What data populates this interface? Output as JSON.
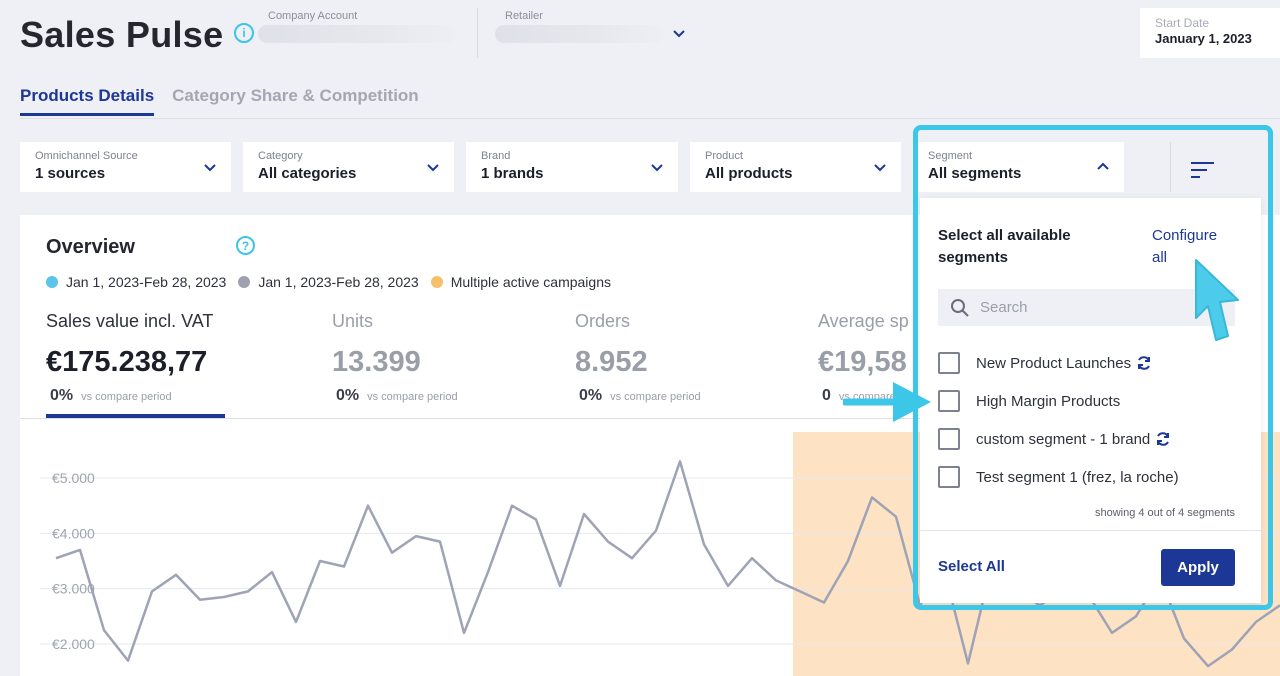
{
  "header": {
    "title": "Sales Pulse",
    "company_account_label": "Company Account",
    "retailer_label": "Retailer",
    "start_date_label": "Start Date",
    "start_date_value": "January 1, 2023"
  },
  "tabs": [
    {
      "label": "Products Details",
      "active": true
    },
    {
      "label": "Category Share & Competition",
      "active": false
    }
  ],
  "filters": [
    {
      "label": "Omnichannel Source",
      "value": "1 sources"
    },
    {
      "label": "Category",
      "value": "All categories"
    },
    {
      "label": "Brand",
      "value": "1 brands"
    },
    {
      "label": "Product",
      "value": "All products"
    },
    {
      "label": "Segment",
      "value": "All segments"
    }
  ],
  "overview": {
    "title": "Overview",
    "legend": [
      {
        "label": "Jan 1, 2023-Feb 28, 2023",
        "color": "#5bc4ea"
      },
      {
        "label": "Jan 1, 2023-Feb 28, 2023",
        "color": "#9ea1ad"
      },
      {
        "label": "Multiple active campaigns",
        "color": "#f6bf6a"
      }
    ],
    "kpis": [
      {
        "name": "Sales value incl. VAT",
        "value": "€175.238,77",
        "pct": "0%",
        "vs": "vs compare period"
      },
      {
        "name": "Units",
        "value": "13.399",
        "pct": "0%",
        "vs": "vs compare period"
      },
      {
        "name": "Orders",
        "value": "8.952",
        "pct": "0%",
        "vs": "vs compare period"
      },
      {
        "name": "Average sp",
        "value": "€19,58",
        "pct": "0",
        "vs": "vs compare period"
      }
    ]
  },
  "segment_panel": {
    "title": "Select all available segments",
    "configure": "Configure all",
    "search_placeholder": "Search",
    "items": [
      {
        "label": "New Product Launches",
        "refresh": true
      },
      {
        "label": "High Margin Products",
        "refresh": false
      },
      {
        "label": "custom segment - 1 brand",
        "refresh": true
      },
      {
        "label": "Test segment 1 (frez, la roche)",
        "refresh": false
      }
    ],
    "showing": "showing 4 out of 4 segments",
    "select_all": "Select All",
    "apply": "Apply"
  },
  "chart_data": {
    "type": "line",
    "yticks": [
      "€5.000",
      "€4.000",
      "€3.000",
      "€2.000"
    ],
    "y_tick_values": [
      5000,
      4000,
      3000,
      2000
    ],
    "ylim": [
      1500,
      5500
    ],
    "campaign_band_color": "#fde2c4",
    "series": [
      {
        "color": "#9ea3b5",
        "values": [
          3550,
          3700,
          2250,
          1700,
          2950,
          3250,
          2800,
          2850,
          2950,
          3300,
          2400,
          3500,
          3400,
          4500,
          3650,
          3950,
          3850,
          2200,
          3300,
          4500,
          4250,
          3050,
          4350,
          3850,
          3550,
          4050,
          5300,
          3800,
          3050,
          3550,
          3150,
          2950,
          2750,
          3500,
          4650,
          4300,
          2700,
          3350,
          1650,
          3450,
          2950,
          2700,
          3000,
          2900,
          2200,
          2500,
          3200,
          2100,
          1600,
          1900,
          2400,
          2700
        ]
      }
    ]
  }
}
